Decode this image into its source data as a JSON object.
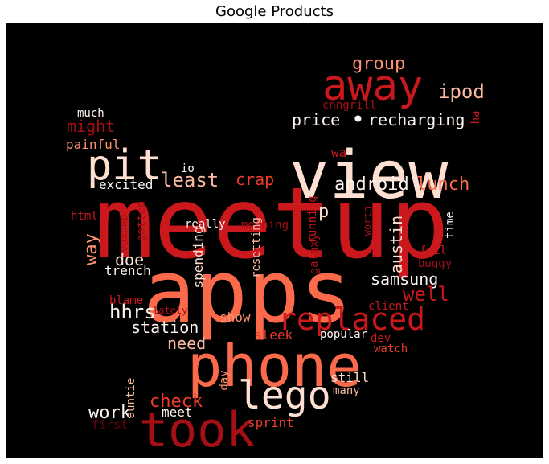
{
  "title": "Google Products",
  "words": [
    {
      "text": "meetup",
      "color": "#cb181d"
    },
    {
      "text": "apps",
      "color": "#fb6a4a"
    },
    {
      "text": "view",
      "color": "#fee0d2"
    },
    {
      "text": "phone",
      "color": "#fb6a4a"
    },
    {
      "text": "away",
      "color": "#cb181d"
    },
    {
      "text": "took",
      "color": "#a50f15"
    },
    {
      "text": "pit",
      "color": "#fee0d2"
    },
    {
      "text": "lego",
      "color": "#fee0d2"
    },
    {
      "text": "replaced",
      "color": "#cb181d"
    },
    {
      "text": "price",
      "color": "#fff5f0"
    },
    {
      "text": "recharging",
      "color": "#fff5f0"
    },
    {
      "text": "group",
      "color": "#fc9272"
    },
    {
      "text": "ipod",
      "color": "#fcbba1"
    },
    {
      "text": "android",
      "color": "#fff5f0"
    },
    {
      "text": "lunch",
      "color": "#fb6a4a"
    },
    {
      "text": "least",
      "color": "#fcbba1"
    },
    {
      "text": "crap",
      "color": "#ef3b2c"
    },
    {
      "text": "station",
      "color": "#fff5f0"
    },
    {
      "text": "samsung",
      "color": "#fff5f0"
    },
    {
      "text": "austin",
      "color": "#fee0d2"
    },
    {
      "text": "well",
      "color": "#cb181d"
    },
    {
      "text": "check",
      "color": "#ef3b2c"
    },
    {
      "text": "might",
      "color": "#a50f15"
    },
    {
      "text": "need",
      "color": "#fcbba1"
    },
    {
      "text": "hhrs",
      "color": "#fff5f0"
    },
    {
      "text": "doe",
      "color": "#fee0d2"
    },
    {
      "text": "way",
      "color": "#fc9272"
    },
    {
      "text": "work",
      "color": "#fff5f0"
    },
    {
      "text": "meet",
      "color": "#fff5f0"
    },
    {
      "text": "sprint",
      "color": "#ef3b2c"
    },
    {
      "text": "cnngrill",
      "color": "#a50f15"
    },
    {
      "text": "much",
      "color": "#fff5f0"
    },
    {
      "text": "painful",
      "color": "#fc9272"
    },
    {
      "text": "io",
      "color": "#fff5f0"
    },
    {
      "text": "excited",
      "color": "#fff5f0"
    },
    {
      "text": "html",
      "color": "#cb181d"
    },
    {
      "text": "gotten",
      "color": "#a50f15"
    },
    {
      "text": "really",
      "color": "#fff5f0"
    },
    {
      "text": "morning",
      "color": "#a50f15"
    },
    {
      "text": "running",
      "color": "#cb181d"
    },
    {
      "text": "worth",
      "color": "#a50f15"
    },
    {
      "text": "time",
      "color": "#fff5f0"
    },
    {
      "text": "p",
      "color": "#fee0d2"
    },
    {
      "text": "voxpop",
      "color": "#a50f15"
    },
    {
      "text": "trench",
      "color": "#fff5f0"
    },
    {
      "text": "spending",
      "color": "#fee0d2"
    },
    {
      "text": "resetting",
      "color": "#fcbba1"
    },
    {
      "text": "galaxy",
      "color": "#a50f15"
    },
    {
      "text": "fail",
      "color": "#cb181d"
    },
    {
      "text": "buggy",
      "color": "#a50f15"
    },
    {
      "text": "blame",
      "color": "#cb181d"
    },
    {
      "text": "lately",
      "color": "#a50f15"
    },
    {
      "text": "show",
      "color": "#fc9272"
    },
    {
      "text": "client",
      "color": "#cb181d"
    },
    {
      "text": "sleek",
      "color": "#ef3b2c"
    },
    {
      "text": "popular",
      "color": "#fff5f0"
    },
    {
      "text": "dev",
      "color": "#cb181d"
    },
    {
      "text": "watch",
      "color": "#ef3b2c"
    },
    {
      "text": "day",
      "color": "#fc9272"
    },
    {
      "text": "still",
      "color": "#fee0d2"
    },
    {
      "text": "many",
      "color": "#fcbba1"
    },
    {
      "text": "auntie",
      "color": "#fcbba1"
    },
    {
      "text": "first",
      "color": "#67000d"
    },
    {
      "text": "wa",
      "color": "#cb181d"
    },
    {
      "text": "ha",
      "color": "#cb181d"
    },
    {
      "text": "•",
      "color": "#fff5f0"
    }
  ]
}
